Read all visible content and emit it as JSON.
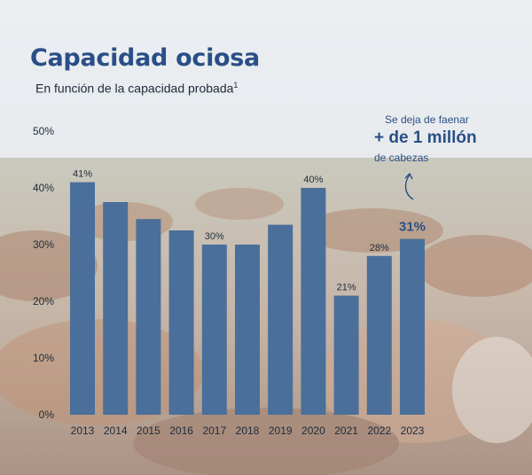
{
  "header": {
    "title": "Capacidad ociosa",
    "subtitle": "En función de la capacidad probada",
    "footnote_mark": "1"
  },
  "annotation": {
    "line1": "Se deja de faenar",
    "line2": "+ de 1 millón",
    "line3": "de cabezas"
  },
  "colors": {
    "bar": "#4a6f9a",
    "title": "#2a4f86",
    "highlight_label": "#2a4f86"
  },
  "chart_data": {
    "type": "bar",
    "title": "Capacidad ociosa",
    "subtitle": "En función de la capacidad probada",
    "categories": [
      "2013",
      "2014",
      "2015",
      "2016",
      "2017",
      "2018",
      "2019",
      "2020",
      "2021",
      "2022",
      "2023"
    ],
    "values": [
      41,
      37.5,
      34.5,
      32.5,
      30,
      30,
      33.5,
      40,
      21,
      28,
      31
    ],
    "data_labels": [
      "41%",
      "",
      "",
      "",
      "30%",
      "",
      "",
      "40%",
      "21%",
      "28%",
      "31%"
    ],
    "highlighted_category": "2023",
    "yticks": [
      "0%",
      "10%",
      "20%",
      "30%",
      "40%",
      "50%"
    ],
    "ylim": [
      0,
      50
    ],
    "xlabel": "",
    "ylabel": "",
    "grid": false,
    "legend": "none"
  }
}
